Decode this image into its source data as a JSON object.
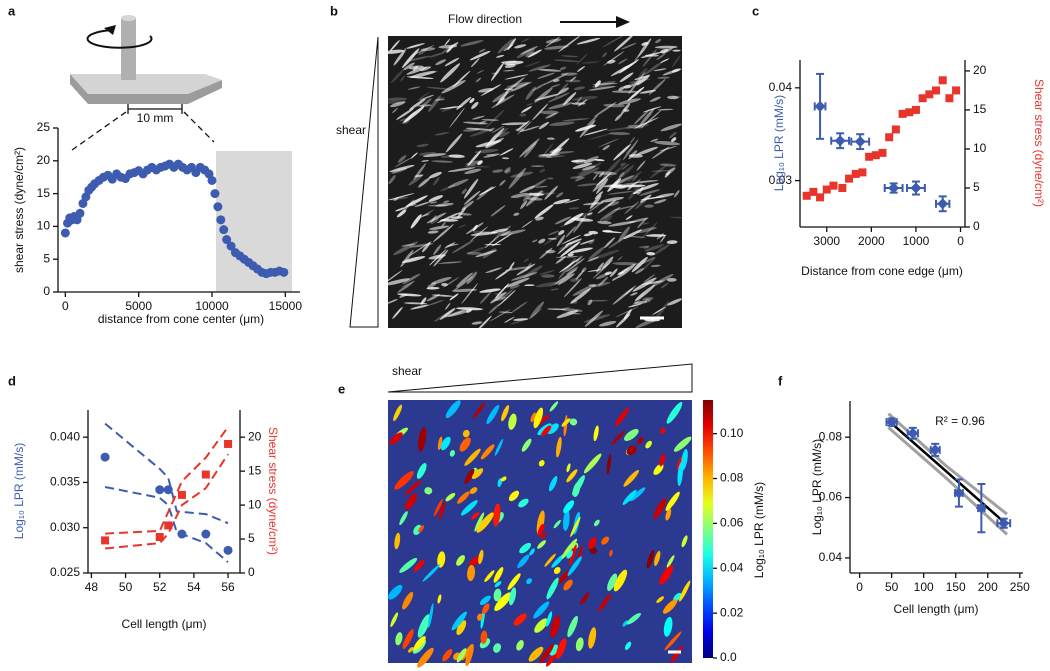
{
  "chart_data": [
    {
      "panel": "a",
      "type": "scatter",
      "annotation": "10 mm",
      "xlabel": "distance from cone center (μm)",
      "ylabel": "shear stress (dyne/cm²)",
      "x": [
        0,
        150,
        300,
        450,
        600,
        800,
        1000,
        1200,
        1400,
        1600,
        1800,
        2000,
        2300,
        2600,
        2900,
        3200,
        3500,
        3800,
        4100,
        4400,
        4700,
        5000,
        5300,
        5600,
        5900,
        6200,
        6500,
        6800,
        7100,
        7400,
        7700,
        8000,
        8300,
        8600,
        8900,
        9200,
        9500,
        9800,
        10000,
        10200,
        10400,
        10600,
        10800,
        11000,
        11300,
        11600,
        11900,
        12200,
        12500,
        12800,
        13100,
        13400,
        13700,
        14000,
        14300,
        14600,
        14900
      ],
      "values": [
        9,
        10.5,
        11.3,
        11,
        11.5,
        11,
        12,
        13.5,
        14.5,
        15.5,
        16,
        16.5,
        17,
        17.5,
        17.8,
        17.2,
        18,
        17.5,
        17.3,
        18,
        18.2,
        18.5,
        18,
        18.6,
        19,
        18.6,
        19,
        19.2,
        19.5,
        19,
        19.5,
        19,
        18.6,
        19,
        18.2,
        19,
        18.6,
        18,
        17,
        15,
        13,
        11,
        9.5,
        8,
        7,
        6,
        5.5,
        5,
        4.5,
        4,
        3.5,
        3,
        2.8,
        3,
        3,
        3.2,
        3
      ],
      "color": "#3d5cb0",
      "marker": "circle",
      "xlim": [
        -500,
        16000
      ],
      "xticks": [
        0,
        5000,
        10000,
        15000
      ],
      "ylim": [
        0,
        25
      ],
      "yticks": [
        0,
        5,
        10,
        15,
        20,
        25
      ]
    },
    {
      "panel": "c",
      "type": "scatter",
      "xlabel": "Distance from cone edge (μm)",
      "ylabel": "Log₁₀ LPR (mM/s)",
      "y2label": "Shear stress (dyne/cm²)",
      "xlim": [
        3600,
        -100
      ],
      "xticks": [
        3000,
        2000,
        1000,
        0
      ],
      "ylim": [
        0.025,
        0.043
      ],
      "yticks": [
        0.03,
        0.04
      ],
      "y2lim": [
        0,
        21.4
      ],
      "y2ticks": [
        0,
        5,
        10,
        15,
        20
      ],
      "series": [
        {
          "color": "#e8352c",
          "marker": "square",
          "axis": "y2",
          "x": [
            3450,
            3300,
            3150,
            3000,
            2850,
            2650,
            2500,
            2350,
            2200,
            2050,
            1900,
            1750,
            1600,
            1450,
            1300,
            1150,
            1000,
            850,
            700,
            550,
            400,
            250,
            100
          ],
          "values": [
            4,
            4.5,
            3.8,
            4.8,
            5.3,
            5,
            6.2,
            6.8,
            7,
            9,
            9.2,
            9.5,
            11.5,
            12.5,
            14.5,
            14.7,
            15,
            16.5,
            17,
            17.5,
            18.8,
            16.5,
            17.5
          ]
        },
        {
          "color": "#3d5cb0",
          "marker": "diamond",
          "x": [
            3150,
            2700,
            2250,
            1500,
            1000,
            400
          ],
          "values": [
            0.038,
            0.0343,
            0.0342,
            0.0292,
            0.0292,
            0.0275
          ],
          "xerr": [
            120,
            200,
            200,
            200,
            200,
            150
          ],
          "yerr": [
            0.0035,
            0.0008,
            0.0008,
            0.0005,
            0.0007,
            0.0008
          ]
        }
      ]
    },
    {
      "panel": "d",
      "type": "scatter",
      "xlabel": "Cell length (μm)",
      "ylabel": "Log₁₀ LPR (mM/s)",
      "y2label": "Shear stress (dyne/cm²)",
      "xlim": [
        47.8,
        56.7
      ],
      "xticks": [
        48,
        50,
        52,
        54,
        56
      ],
      "ylim": [
        0.025,
        0.043
      ],
      "yticks": [
        0.025,
        {
          "value": 0.03,
          "label": "0.030"
        },
        0.035,
        {
          "value": 0.04,
          "label": "0.040"
        }
      ],
      "y2lim": [
        0,
        24
      ],
      "y2ticks": [
        0,
        5,
        10,
        15,
        20
      ],
      "series": [
        {
          "color": "#3d5cb0",
          "line": "dashed",
          "x": [
            48.8,
            52,
            52.5,
            53,
            54.7,
            56
          ],
          "values": [
            0.0415,
            0.0365,
            0.0355,
            0.0318,
            0.0315,
            0.0305
          ]
        },
        {
          "color": "#3d5cb0",
          "line": "dashed",
          "x": [
            48.8,
            52,
            52.5,
            53,
            54.7,
            56
          ],
          "values": [
            0.0345,
            0.0333,
            0.0325,
            0.0295,
            0.0283,
            0.0262
          ]
        },
        {
          "color": "#e8352c",
          "line": "dashed",
          "axis": "y2",
          "x": [
            48.8,
            52,
            52.5,
            53.3,
            54.7,
            56
          ],
          "values": [
            5.8,
            6.2,
            9,
            13.5,
            17,
            21.5
          ]
        },
        {
          "color": "#e8352c",
          "line": "dashed",
          "axis": "y2",
          "x": [
            48.8,
            52,
            52.5,
            53.3,
            54.7,
            56
          ],
          "values": [
            3.6,
            4.4,
            5.8,
            10,
            12.5,
            17.5
          ]
        },
        {
          "color": "#3d5cb0",
          "marker": "circle",
          "x": [
            48.8,
            52,
            52.5,
            53.3,
            54.7,
            56
          ],
          "values": [
            0.0378,
            0.0342,
            0.0342,
            0.0293,
            0.0293,
            0.0275
          ]
        },
        {
          "color": "#e8352c",
          "marker": "square",
          "axis": "y2",
          "x": [
            48.8,
            52,
            52.5,
            53.3,
            54.7,
            56
          ],
          "values": [
            4.8,
            5.3,
            7,
            11.5,
            14.5,
            19
          ]
        }
      ]
    },
    {
      "type": "colorbar",
      "colormap": "jet",
      "ylabel": "Log₁₀ LPR (mM/s)",
      "ylim": [
        0,
        0.115
      ],
      "yticks": [
        {
          "value": 0,
          "label": "0.0"
        },
        0.02,
        0.04,
        0.06,
        0.08,
        {
          "value": 0.1,
          "label": "0.10"
        }
      ]
    },
    {
      "panel": "f",
      "type": "scatter",
      "annotation": "R² = 0.96",
      "xlabel": "Cell length (μm)",
      "ylabel": "Log₁₀ LPR (mM/s)",
      "xlim": [
        -15,
        255
      ],
      "xticks": [
        0,
        50,
        100,
        150,
        200,
        250
      ],
      "ylim": [
        0.035,
        0.092
      ],
      "yticks": [
        0.04,
        0.06,
        0.08
      ],
      "series": [
        {
          "color": "#a0a0a0",
          "line": "solid",
          "width": 3,
          "x": [
            45,
            135,
            230
          ],
          "values": [
            0.0878,
            0.0705,
            0.0545
          ]
        },
        {
          "color": "#a0a0a0",
          "line": "solid",
          "width": 3,
          "x": [
            45,
            135,
            230
          ],
          "values": [
            0.0832,
            0.0665,
            0.0478
          ]
        },
        {
          "color": "#000000",
          "line": "solid",
          "width": 2.5,
          "x": [
            45,
            230
          ],
          "values": [
            0.0855,
            0.051
          ]
        },
        {
          "color": "#3d5cb0",
          "marker": "diamond",
          "x": [
            50,
            83,
            118,
            155,
            190,
            225
          ],
          "values": [
            0.085,
            0.0813,
            0.0758,
            0.0615,
            0.0565,
            0.0515
          ],
          "xerr": [
            8,
            8,
            7,
            6,
            5,
            10
          ],
          "yerr": [
            0.0012,
            0.0018,
            0.002,
            0.0045,
            0.008,
            0.0015
          ]
        }
      ]
    }
  ],
  "images": [
    {
      "panel": "b",
      "title": "Flow direction",
      "side_label": "shear"
    },
    {
      "panel": "e",
      "side_label": "shear"
    }
  ]
}
